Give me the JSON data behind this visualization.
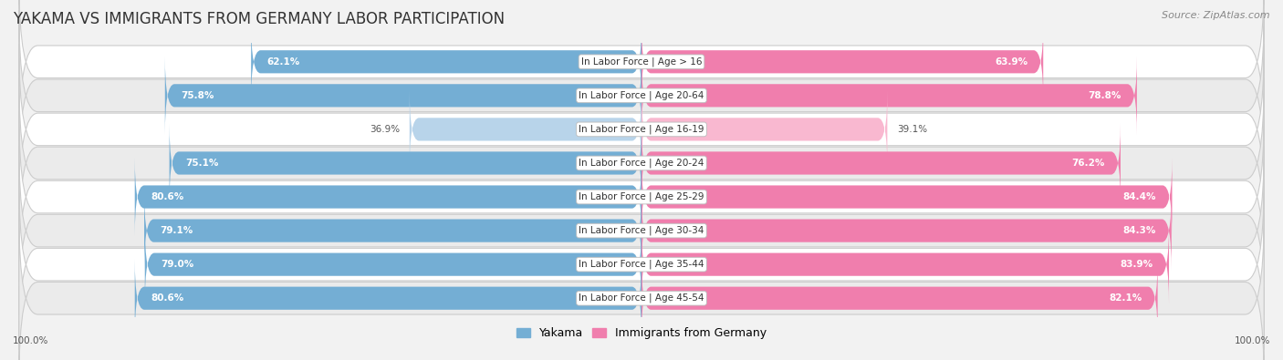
{
  "title": "YAKAMA VS IMMIGRANTS FROM GERMANY LABOR PARTICIPATION",
  "source": "Source: ZipAtlas.com",
  "categories": [
    "In Labor Force | Age > 16",
    "In Labor Force | Age 20-64",
    "In Labor Force | Age 16-19",
    "In Labor Force | Age 20-24",
    "In Labor Force | Age 25-29",
    "In Labor Force | Age 30-34",
    "In Labor Force | Age 35-44",
    "In Labor Force | Age 45-54"
  ],
  "yakama_values": [
    62.1,
    75.8,
    36.9,
    75.1,
    80.6,
    79.1,
    79.0,
    80.6
  ],
  "germany_values": [
    63.9,
    78.8,
    39.1,
    76.2,
    84.4,
    84.3,
    83.9,
    82.1
  ],
  "yakama_color": "#74aed4",
  "yakama_color_light": "#b8d4ea",
  "germany_color": "#f07ead",
  "germany_color_light": "#f9b8d0",
  "bar_height": 0.68,
  "background_color": "#f2f2f2",
  "row_bg_even": "#ffffff",
  "row_bg_odd": "#ebebeb",
  "title_fontsize": 12,
  "label_fontsize": 7.5,
  "value_fontsize": 7.5,
  "legend_fontsize": 9,
  "source_fontsize": 8,
  "xlim_left": -100,
  "xlim_right": 100,
  "footer_label": "100.0%"
}
